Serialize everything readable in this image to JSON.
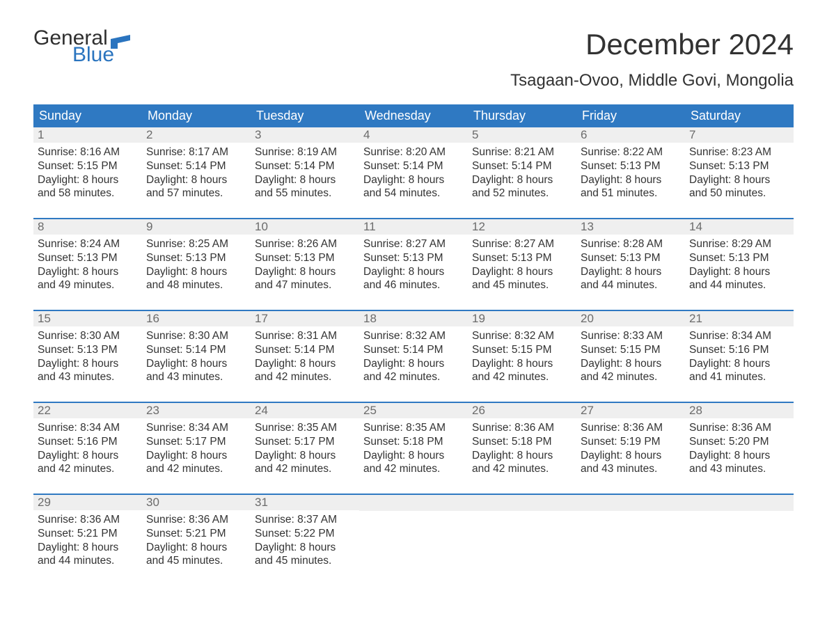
{
  "brand": {
    "part1": "General",
    "part2": "Blue"
  },
  "title": "December 2024",
  "location": "Tsagaan-Ovoo, Middle Govi, Mongolia",
  "colors": {
    "header_bg": "#2f79c2",
    "header_text": "#ffffff",
    "week_border": "#2f79c2",
    "daynum_bg": "#efefef",
    "daynum_text": "#6b6b6b",
    "body_text": "#333333",
    "brand_accent": "#2a74bf"
  },
  "day_headers": [
    "Sunday",
    "Monday",
    "Tuesday",
    "Wednesday",
    "Thursday",
    "Friday",
    "Saturday"
  ],
  "weeks": [
    [
      {
        "n": "1",
        "sunrise": "Sunrise: 8:16 AM",
        "sunset": "Sunset: 5:15 PM",
        "d1": "Daylight: 8 hours",
        "d2": "and 58 minutes."
      },
      {
        "n": "2",
        "sunrise": "Sunrise: 8:17 AM",
        "sunset": "Sunset: 5:14 PM",
        "d1": "Daylight: 8 hours",
        "d2": "and 57 minutes."
      },
      {
        "n": "3",
        "sunrise": "Sunrise: 8:19 AM",
        "sunset": "Sunset: 5:14 PM",
        "d1": "Daylight: 8 hours",
        "d2": "and 55 minutes."
      },
      {
        "n": "4",
        "sunrise": "Sunrise: 8:20 AM",
        "sunset": "Sunset: 5:14 PM",
        "d1": "Daylight: 8 hours",
        "d2": "and 54 minutes."
      },
      {
        "n": "5",
        "sunrise": "Sunrise: 8:21 AM",
        "sunset": "Sunset: 5:14 PM",
        "d1": "Daylight: 8 hours",
        "d2": "and 52 minutes."
      },
      {
        "n": "6",
        "sunrise": "Sunrise: 8:22 AM",
        "sunset": "Sunset: 5:13 PM",
        "d1": "Daylight: 8 hours",
        "d2": "and 51 minutes."
      },
      {
        "n": "7",
        "sunrise": "Sunrise: 8:23 AM",
        "sunset": "Sunset: 5:13 PM",
        "d1": "Daylight: 8 hours",
        "d2": "and 50 minutes."
      }
    ],
    [
      {
        "n": "8",
        "sunrise": "Sunrise: 8:24 AM",
        "sunset": "Sunset: 5:13 PM",
        "d1": "Daylight: 8 hours",
        "d2": "and 49 minutes."
      },
      {
        "n": "9",
        "sunrise": "Sunrise: 8:25 AM",
        "sunset": "Sunset: 5:13 PM",
        "d1": "Daylight: 8 hours",
        "d2": "and 48 minutes."
      },
      {
        "n": "10",
        "sunrise": "Sunrise: 8:26 AM",
        "sunset": "Sunset: 5:13 PM",
        "d1": "Daylight: 8 hours",
        "d2": "and 47 minutes."
      },
      {
        "n": "11",
        "sunrise": "Sunrise: 8:27 AM",
        "sunset": "Sunset: 5:13 PM",
        "d1": "Daylight: 8 hours",
        "d2": "and 46 minutes."
      },
      {
        "n": "12",
        "sunrise": "Sunrise: 8:27 AM",
        "sunset": "Sunset: 5:13 PM",
        "d1": "Daylight: 8 hours",
        "d2": "and 45 minutes."
      },
      {
        "n": "13",
        "sunrise": "Sunrise: 8:28 AM",
        "sunset": "Sunset: 5:13 PM",
        "d1": "Daylight: 8 hours",
        "d2": "and 44 minutes."
      },
      {
        "n": "14",
        "sunrise": "Sunrise: 8:29 AM",
        "sunset": "Sunset: 5:13 PM",
        "d1": "Daylight: 8 hours",
        "d2": "and 44 minutes."
      }
    ],
    [
      {
        "n": "15",
        "sunrise": "Sunrise: 8:30 AM",
        "sunset": "Sunset: 5:13 PM",
        "d1": "Daylight: 8 hours",
        "d2": "and 43 minutes."
      },
      {
        "n": "16",
        "sunrise": "Sunrise: 8:30 AM",
        "sunset": "Sunset: 5:14 PM",
        "d1": "Daylight: 8 hours",
        "d2": "and 43 minutes."
      },
      {
        "n": "17",
        "sunrise": "Sunrise: 8:31 AM",
        "sunset": "Sunset: 5:14 PM",
        "d1": "Daylight: 8 hours",
        "d2": "and 42 minutes."
      },
      {
        "n": "18",
        "sunrise": "Sunrise: 8:32 AM",
        "sunset": "Sunset: 5:14 PM",
        "d1": "Daylight: 8 hours",
        "d2": "and 42 minutes."
      },
      {
        "n": "19",
        "sunrise": "Sunrise: 8:32 AM",
        "sunset": "Sunset: 5:15 PM",
        "d1": "Daylight: 8 hours",
        "d2": "and 42 minutes."
      },
      {
        "n": "20",
        "sunrise": "Sunrise: 8:33 AM",
        "sunset": "Sunset: 5:15 PM",
        "d1": "Daylight: 8 hours",
        "d2": "and 42 minutes."
      },
      {
        "n": "21",
        "sunrise": "Sunrise: 8:34 AM",
        "sunset": "Sunset: 5:16 PM",
        "d1": "Daylight: 8 hours",
        "d2": "and 41 minutes."
      }
    ],
    [
      {
        "n": "22",
        "sunrise": "Sunrise: 8:34 AM",
        "sunset": "Sunset: 5:16 PM",
        "d1": "Daylight: 8 hours",
        "d2": "and 42 minutes."
      },
      {
        "n": "23",
        "sunrise": "Sunrise: 8:34 AM",
        "sunset": "Sunset: 5:17 PM",
        "d1": "Daylight: 8 hours",
        "d2": "and 42 minutes."
      },
      {
        "n": "24",
        "sunrise": "Sunrise: 8:35 AM",
        "sunset": "Sunset: 5:17 PM",
        "d1": "Daylight: 8 hours",
        "d2": "and 42 minutes."
      },
      {
        "n": "25",
        "sunrise": "Sunrise: 8:35 AM",
        "sunset": "Sunset: 5:18 PM",
        "d1": "Daylight: 8 hours",
        "d2": "and 42 minutes."
      },
      {
        "n": "26",
        "sunrise": "Sunrise: 8:36 AM",
        "sunset": "Sunset: 5:18 PM",
        "d1": "Daylight: 8 hours",
        "d2": "and 42 minutes."
      },
      {
        "n": "27",
        "sunrise": "Sunrise: 8:36 AM",
        "sunset": "Sunset: 5:19 PM",
        "d1": "Daylight: 8 hours",
        "d2": "and 43 minutes."
      },
      {
        "n": "28",
        "sunrise": "Sunrise: 8:36 AM",
        "sunset": "Sunset: 5:20 PM",
        "d1": "Daylight: 8 hours",
        "d2": "and 43 minutes."
      }
    ],
    [
      {
        "n": "29",
        "sunrise": "Sunrise: 8:36 AM",
        "sunset": "Sunset: 5:21 PM",
        "d1": "Daylight: 8 hours",
        "d2": "and 44 minutes."
      },
      {
        "n": "30",
        "sunrise": "Sunrise: 8:36 AM",
        "sunset": "Sunset: 5:21 PM",
        "d1": "Daylight: 8 hours",
        "d2": "and 45 minutes."
      },
      {
        "n": "31",
        "sunrise": "Sunrise: 8:37 AM",
        "sunset": "Sunset: 5:22 PM",
        "d1": "Daylight: 8 hours",
        "d2": "and 45 minutes."
      },
      null,
      null,
      null,
      null
    ]
  ]
}
